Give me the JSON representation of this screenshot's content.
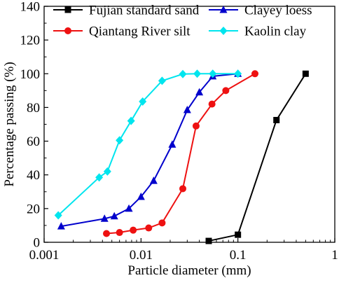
{
  "chart_data": {
    "type": "line",
    "xscale": "log",
    "xlabel": "Particle diameter (mm)",
    "ylabel": "Percentage passing (%)",
    "xlim": [
      0.001,
      1
    ],
    "ylim": [
      0,
      140
    ],
    "xticks": [
      0.001,
      0.01,
      0.1,
      1
    ],
    "xtick_labels": [
      "0.001",
      "0.01",
      "0.1",
      "1"
    ],
    "yticks": [
      0,
      20,
      40,
      60,
      80,
      100,
      120,
      140
    ],
    "ytick_labels": [
      "0",
      "20",
      "40",
      "60",
      "80",
      "100",
      "120",
      "140"
    ],
    "grid": false,
    "legend_position": "top",
    "series": [
      {
        "name": "Fujian standard sand",
        "color": "#000000",
        "marker": "square",
        "x": [
          0.05,
          0.1,
          0.25,
          0.5
        ],
        "y": [
          0.8,
          4.5,
          72.5,
          100
        ]
      },
      {
        "name": "Clayey loess",
        "color": "#0000cc",
        "marker": "triangle",
        "x": [
          0.0015,
          0.0042,
          0.0053,
          0.0075,
          0.01,
          0.0135,
          0.021,
          0.03,
          0.04,
          0.055,
          0.1
        ],
        "y": [
          9.5,
          14,
          15.5,
          20,
          27,
          36.5,
          58,
          78.5,
          89,
          98.5,
          100
        ]
      },
      {
        "name": "Qiantang River silt",
        "color": "#ee1111",
        "marker": "circle",
        "x": [
          0.0044,
          0.006,
          0.0083,
          0.012,
          0.0165,
          0.027,
          0.037,
          0.054,
          0.075,
          0.15
        ],
        "y": [
          5.2,
          5.8,
          7.2,
          8.5,
          11.5,
          31.8,
          69,
          82,
          90,
          100
        ]
      },
      {
        "name": "Kaolin clay",
        "color": "#00e5ee",
        "marker": "diamond",
        "x": [
          0.0014,
          0.0037,
          0.0045,
          0.006,
          0.0079,
          0.0104,
          0.0165,
          0.027,
          0.038,
          0.055,
          0.1
        ],
        "y": [
          16,
          38.5,
          42,
          60.5,
          72,
          83.5,
          95.8,
          99.8,
          100,
          100,
          100
        ]
      }
    ]
  }
}
